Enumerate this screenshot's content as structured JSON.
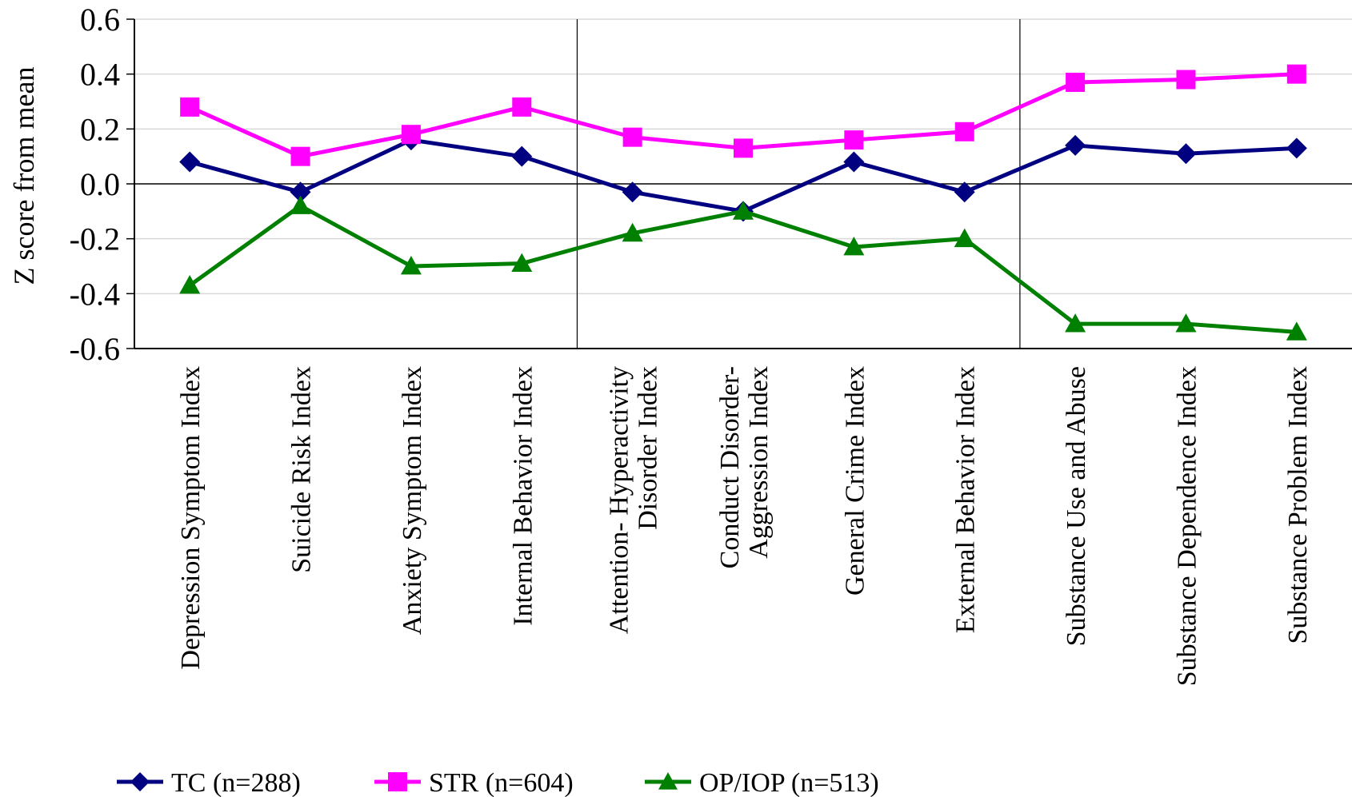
{
  "chart_data": {
    "type": "line",
    "title": "",
    "xlabel": "",
    "ylabel": "Z score from mean",
    "ylim": [
      -0.6,
      0.6
    ],
    "yticks": [
      0.6,
      0.4,
      0.2,
      0.0,
      -0.2,
      -0.4,
      -0.6
    ],
    "ytick_labels": [
      "0.6",
      "0.4",
      "0.2",
      "0.0",
      "-0.2",
      "-0.4",
      "-0.6"
    ],
    "grid": true,
    "legend_position": "bottom",
    "group_separators_after": [
      3,
      7
    ],
    "categories": [
      [
        "Depression Symptom Index"
      ],
      [
        "Suicide Risk Index"
      ],
      [
        "Anxiety Symptom Index"
      ],
      [
        "Internal Behavior Index"
      ],
      [
        "Attention- Hyperactivity",
        "Disorder Index"
      ],
      [
        "Conduct Disorder-",
        "Aggression Index"
      ],
      [
        "General Crime Index"
      ],
      [
        "External Behavior Index"
      ],
      [
        "Substance Use and Abuse"
      ],
      [
        "Substance Dependence Index"
      ],
      [
        "Substance Problem Index"
      ]
    ],
    "series": [
      {
        "name": "TC (n=288)",
        "color": "#000080",
        "marker": "diamond",
        "values": [
          0.08,
          -0.03,
          0.16,
          0.1,
          -0.03,
          -0.1,
          0.08,
          -0.03,
          0.14,
          0.11,
          0.13
        ]
      },
      {
        "name": "STR (n=604)",
        "color": "#FF00FF",
        "marker": "square",
        "values": [
          0.28,
          0.1,
          0.18,
          0.28,
          0.17,
          0.13,
          0.16,
          0.19,
          0.37,
          0.38,
          0.4
        ]
      },
      {
        "name": "OP/IOP (n=513)",
        "color": "#008000",
        "marker": "triangle",
        "values": [
          -0.37,
          -0.08,
          -0.3,
          -0.29,
          -0.18,
          -0.1,
          -0.23,
          -0.2,
          -0.51,
          -0.51,
          -0.54
        ]
      }
    ]
  }
}
